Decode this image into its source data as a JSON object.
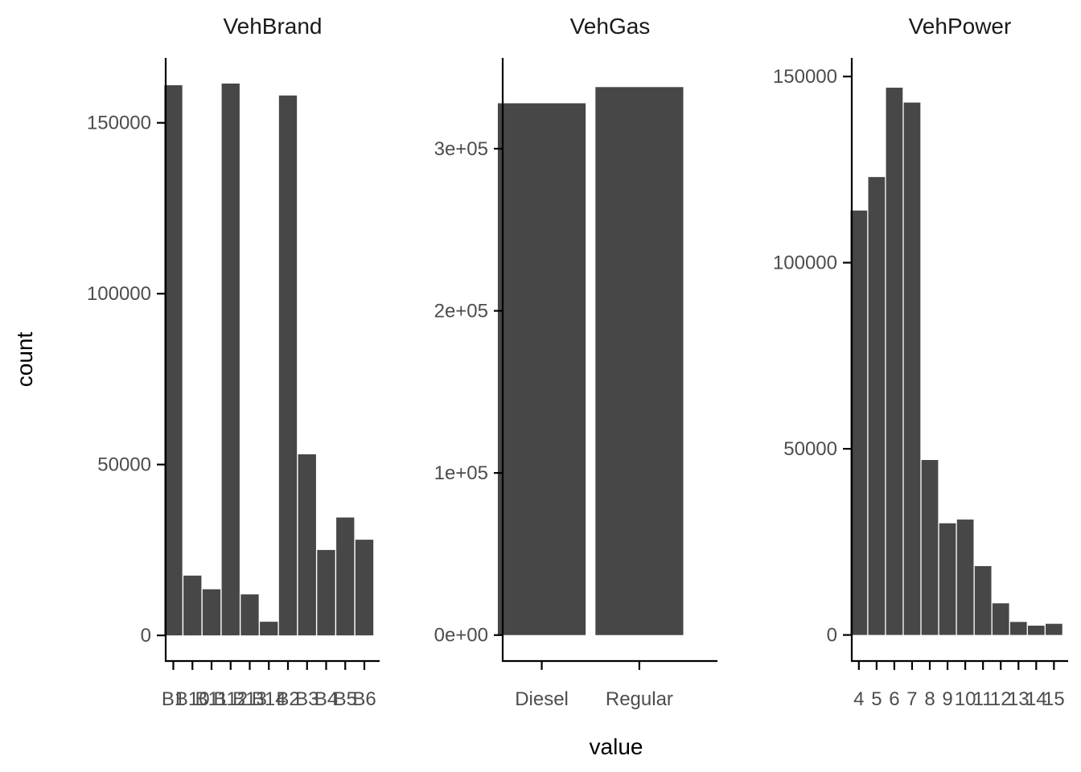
{
  "chart_data": {
    "type": "bar",
    "xlabel": "value",
    "ylabel": "count",
    "colors": {
      "bar": "#474747",
      "background": "#ffffff"
    },
    "grid": false,
    "facets": [
      {
        "title": "VehBrand",
        "categories": [
          "B1",
          "B10",
          "B11",
          "B12",
          "B13",
          "B14",
          "B2",
          "B3",
          "B4",
          "B5",
          "B6"
        ],
        "values": [
          161000,
          17500,
          13500,
          161500,
          12000,
          4000,
          158000,
          53000,
          25000,
          34500,
          28000
        ],
        "ylim": [
          -7500,
          169000
        ],
        "yticks": [
          0,
          50000,
          100000,
          150000
        ],
        "ytick_labels": [
          "0",
          "50000",
          "100000",
          "150000"
        ]
      },
      {
        "title": "VehGas",
        "categories": [
          "Diesel",
          "Regular"
        ],
        "values": [
          328000,
          338000
        ],
        "ylim": [
          -16000,
          356000
        ],
        "yticks": [
          0,
          100000,
          200000,
          300000
        ],
        "ytick_labels": [
          "0e+00",
          "1e+05",
          "2e+05",
          "3e+05"
        ]
      },
      {
        "title": "VehPower",
        "categories": [
          "4",
          "5",
          "6",
          "7",
          "8",
          "9",
          "10",
          "11",
          "12",
          "13",
          "14",
          "15"
        ],
        "values": [
          114000,
          123000,
          147000,
          143000,
          47000,
          30000,
          31000,
          18500,
          8500,
          3500,
          2500,
          3000
        ],
        "ylim": [
          -7000,
          155000
        ],
        "yticks": [
          0,
          50000,
          100000,
          150000
        ],
        "ytick_labels": [
          "0",
          "50000",
          "100000",
          "150000"
        ]
      }
    ]
  }
}
